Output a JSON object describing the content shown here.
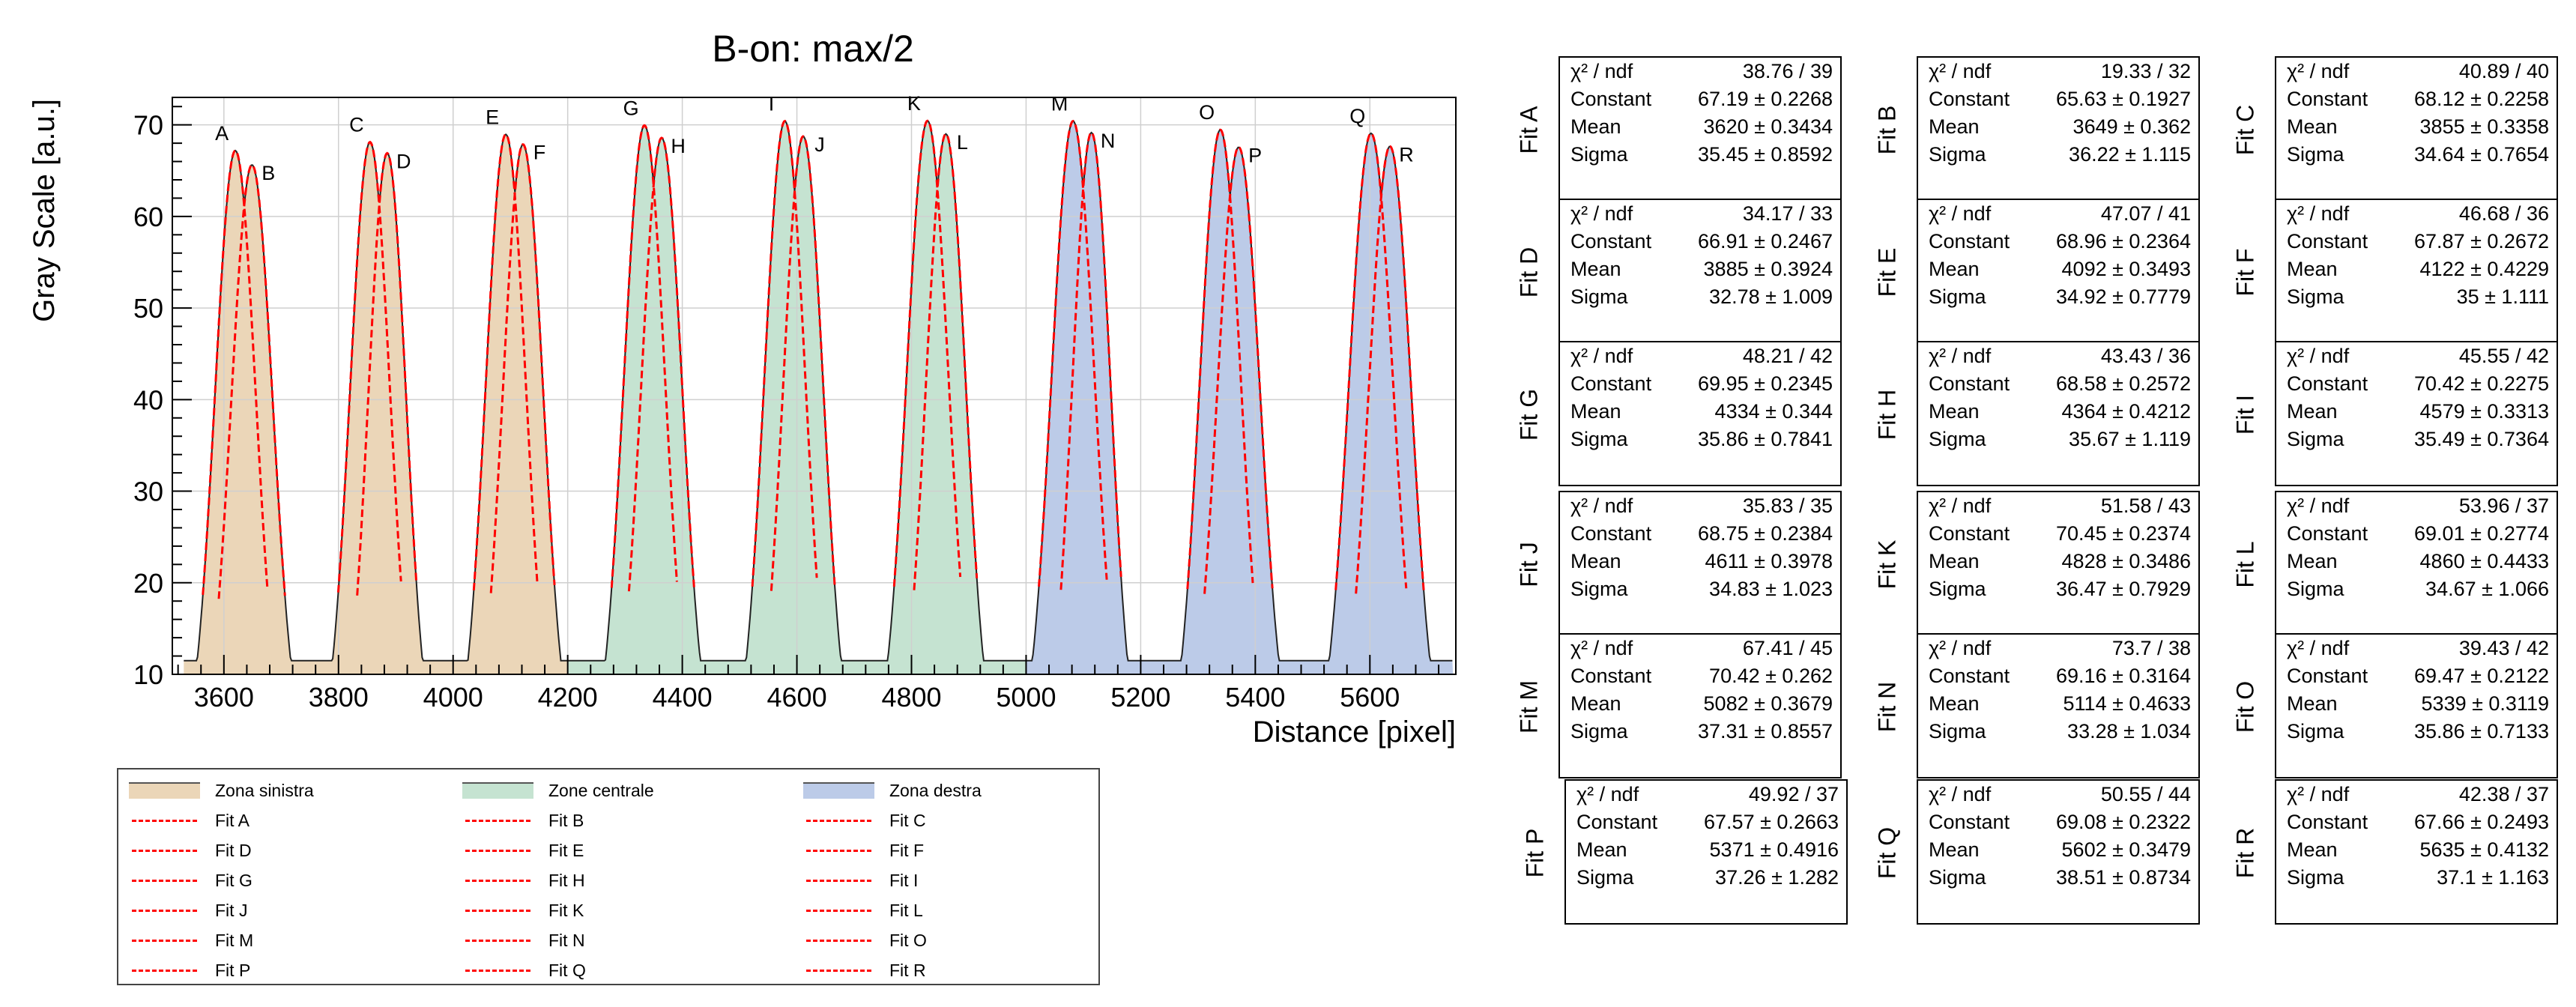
{
  "chart_data": {
    "type": "area",
    "title": "B-on: max/2",
    "xlabel": "Distance [pixel]",
    "ylabel": "Gray Scale [a.u.]",
    "xlim": [
      3510,
      5750
    ],
    "ylim": [
      10,
      73
    ],
    "x_ticks": [
      3600,
      3800,
      4000,
      4200,
      4400,
      4600,
      4800,
      5000,
      5200,
      5400,
      5600
    ],
    "y_ticks": [
      10,
      20,
      30,
      40,
      50,
      60,
      70
    ],
    "grid": true,
    "baseline": 11.5,
    "zones": [
      {
        "name": "Zona sinistra",
        "color": "#ebd6b8",
        "x_range": [
          3530,
          4200
        ]
      },
      {
        "name": "Zone centrale",
        "color": "#c5e3d1",
        "x_range": [
          4200,
          5000
        ]
      },
      {
        "name": "Zona destra",
        "color": "#bccbe8",
        "x_range": [
          5000,
          5745
        ]
      }
    ],
    "peaks": [
      {
        "label": "A",
        "mean": 3620,
        "constant": 67.19,
        "sigma": 35.45
      },
      {
        "label": "B",
        "mean": 3649,
        "constant": 65.63,
        "sigma": 36.22
      },
      {
        "label": "C",
        "mean": 3855,
        "constant": 68.12,
        "sigma": 34.64
      },
      {
        "label": "D",
        "mean": 3885,
        "constant": 66.91,
        "sigma": 32.78
      },
      {
        "label": "E",
        "mean": 4092,
        "constant": 68.96,
        "sigma": 34.92
      },
      {
        "label": "F",
        "mean": 4122,
        "constant": 67.87,
        "sigma": 35
      },
      {
        "label": "G",
        "mean": 4334,
        "constant": 69.95,
        "sigma": 35.86
      },
      {
        "label": "H",
        "mean": 4364,
        "constant": 68.58,
        "sigma": 35.67
      },
      {
        "label": "I",
        "mean": 4579,
        "constant": 70.42,
        "sigma": 35.49
      },
      {
        "label": "J",
        "mean": 4611,
        "constant": 68.75,
        "sigma": 34.83
      },
      {
        "label": "K",
        "mean": 4828,
        "constant": 70.45,
        "sigma": 36.47
      },
      {
        "label": "L",
        "mean": 4860,
        "constant": 69.01,
        "sigma": 34.67
      },
      {
        "label": "M",
        "mean": 5082,
        "constant": 70.42,
        "sigma": 37.31
      },
      {
        "label": "N",
        "mean": 5114,
        "constant": 69.16,
        "sigma": 33.28
      },
      {
        "label": "O",
        "mean": 5339,
        "constant": 69.47,
        "sigma": 35.86
      },
      {
        "label": "P",
        "mean": 5371,
        "constant": 67.57,
        "sigma": 37.26
      },
      {
        "label": "Q",
        "mean": 5602,
        "constant": 69.08,
        "sigma": 38.51
      },
      {
        "label": "R",
        "mean": 5635,
        "constant": 67.66,
        "sigma": 37.1
      }
    ],
    "legend": {
      "placement": "bottom",
      "entries": [
        {
          "label": "Zona sinistra",
          "kind": "fill",
          "color": "#ebd6b8"
        },
        {
          "label": "Zone centrale",
          "kind": "fill",
          "color": "#c5e3d1"
        },
        {
          "label": "Zona destra",
          "kind": "fill",
          "color": "#bccbe8"
        },
        {
          "label": "Fit A",
          "kind": "line"
        },
        {
          "label": "Fit B",
          "kind": "line"
        },
        {
          "label": "Fit C",
          "kind": "line"
        },
        {
          "label": "Fit D",
          "kind": "line"
        },
        {
          "label": "Fit E",
          "kind": "line"
        },
        {
          "label": "Fit F",
          "kind": "line"
        },
        {
          "label": "Fit G",
          "kind": "line"
        },
        {
          "label": "Fit H",
          "kind": "line"
        },
        {
          "label": "Fit I",
          "kind": "line"
        },
        {
          "label": "Fit J",
          "kind": "line"
        },
        {
          "label": "Fit K",
          "kind": "line"
        },
        {
          "label": "Fit L",
          "kind": "line"
        },
        {
          "label": "Fit M",
          "kind": "line"
        },
        {
          "label": "Fit N",
          "kind": "line"
        },
        {
          "label": "Fit O",
          "kind": "line"
        },
        {
          "label": "Fit P",
          "kind": "line"
        },
        {
          "label": "Fit Q",
          "kind": "line"
        },
        {
          "label": "Fit R",
          "kind": "line"
        }
      ]
    },
    "fit_line_color": "#ff0000",
    "stat_labels": {
      "chi2": "χ² / ndf",
      "constant": "Constant",
      "mean": "Mean",
      "sigma": "Sigma"
    },
    "fit_stats": [
      {
        "name": "Fit A",
        "chi2": "38.76 / 39",
        "constant": "67.19 ± 0.2268",
        "mean": "3620 ± 0.3434",
        "sigma": "35.45 ± 0.8592"
      },
      {
        "name": "Fit B",
        "chi2": "19.33 / 32",
        "constant": "65.63 ± 0.1927",
        "mean": "3649 ± 0.362",
        "sigma": "36.22 ± 1.115"
      },
      {
        "name": "Fit C",
        "chi2": "40.89 / 40",
        "constant": "68.12 ± 0.2258",
        "mean": "3855 ± 0.3358",
        "sigma": "34.64 ± 0.7654"
      },
      {
        "name": "Fit D",
        "chi2": "34.17 / 33",
        "constant": "66.91 ± 0.2467",
        "mean": "3885 ± 0.3924",
        "sigma": "32.78 ± 1.009"
      },
      {
        "name": "Fit E",
        "chi2": "47.07 / 41",
        "constant": "68.96 ± 0.2364",
        "mean": "4092 ± 0.3493",
        "sigma": "34.92 ± 0.7779"
      },
      {
        "name": "Fit F",
        "chi2": "46.68 / 36",
        "constant": "67.87 ± 0.2672",
        "mean": "4122 ± 0.4229",
        "sigma": "35 ± 1.111"
      },
      {
        "name": "Fit G",
        "chi2": "48.21 / 42",
        "constant": "69.95 ± 0.2345",
        "mean": "4334 ± 0.344",
        "sigma": "35.86 ± 0.7841"
      },
      {
        "name": "Fit H",
        "chi2": "43.43 / 36",
        "constant": "68.58 ± 0.2572",
        "mean": "4364 ± 0.4212",
        "sigma": "35.67 ± 1.119"
      },
      {
        "name": "Fit I",
        "chi2": "45.55 / 42",
        "constant": "70.42 ± 0.2275",
        "mean": "4579 ± 0.3313",
        "sigma": "35.49 ± 0.7364"
      },
      {
        "name": "Fit J",
        "chi2": "35.83 / 35",
        "constant": "68.75 ± 0.2384",
        "mean": "4611 ± 0.3978",
        "sigma": "34.83 ± 1.023"
      },
      {
        "name": "Fit K",
        "chi2": "51.58 / 43",
        "constant": "70.45 ± 0.2374",
        "mean": "4828 ± 0.3486",
        "sigma": "36.47 ± 0.7929"
      },
      {
        "name": "Fit L",
        "chi2": "53.96 / 37",
        "constant": "69.01 ± 0.2774",
        "mean": "4860 ± 0.4433",
        "sigma": "34.67 ± 1.066"
      },
      {
        "name": "Fit M",
        "chi2": "67.41 / 45",
        "constant": "70.42 ± 0.262",
        "mean": "5082 ± 0.3679",
        "sigma": "37.31 ± 0.8557"
      },
      {
        "name": "Fit N",
        "chi2": "73.7 / 38",
        "constant": "69.16 ± 0.3164",
        "mean": "5114 ± 0.4633",
        "sigma": "33.28 ± 1.034"
      },
      {
        "name": "Fit O",
        "chi2": "39.43 / 42",
        "constant": "69.47 ± 0.2122",
        "mean": "5339 ± 0.3119",
        "sigma": "35.86 ± 0.7133"
      },
      {
        "name": "Fit P",
        "chi2": "49.92 / 37",
        "constant": "67.57 ± 0.2663",
        "mean": "5371 ± 0.4916",
        "sigma": "37.26 ± 1.282"
      },
      {
        "name": "Fit Q",
        "chi2": "50.55 / 44",
        "constant": "69.08 ± 0.2322",
        "mean": "5602 ± 0.3479",
        "sigma": "38.51 ± 0.8734"
      },
      {
        "name": "Fit R",
        "chi2": "42.38 / 37",
        "constant": "67.66 ± 0.2493",
        "mean": "5635 ± 0.4132",
        "sigma": "37.1 ± 1.163"
      }
    ]
  }
}
